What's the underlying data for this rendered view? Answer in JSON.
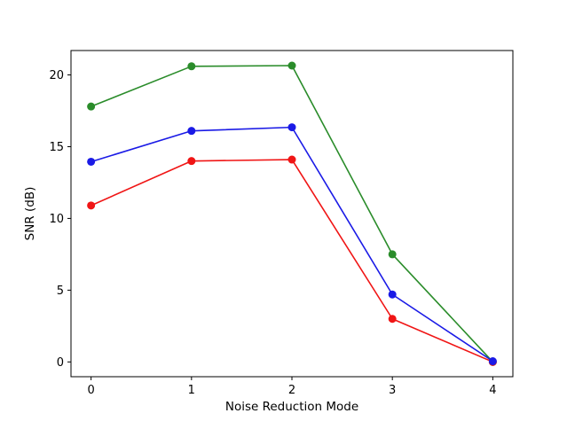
{
  "chart_data": {
    "type": "line",
    "title": "",
    "xlabel": "Noise Reduction Mode",
    "ylabel": "SNR (dB)",
    "x": [
      0,
      1,
      2,
      3,
      4
    ],
    "series": [
      {
        "name": "green",
        "color": "#2a8c2a",
        "values": [
          17.8,
          20.6,
          20.65,
          7.5,
          0.0
        ]
      },
      {
        "name": "red",
        "color": "#f01515",
        "values": [
          10.9,
          14.0,
          14.1,
          3.0,
          0.0
        ]
      },
      {
        "name": "blue",
        "color": "#1a1ae6",
        "values": [
          13.95,
          16.1,
          16.35,
          4.7,
          0.05
        ]
      }
    ],
    "xticks": [
      0,
      1,
      2,
      3,
      4
    ],
    "yticks": [
      0,
      5,
      10,
      15,
      20
    ],
    "xlim": [
      -0.2,
      4.2
    ],
    "ylim": [
      -1.03,
      21.7
    ],
    "grid": false,
    "legend": "none",
    "marker": "circle",
    "marker_radius": 4.5,
    "line_width": 1.6,
    "background_color": "#ffffff",
    "spine_color": "#000000"
  }
}
